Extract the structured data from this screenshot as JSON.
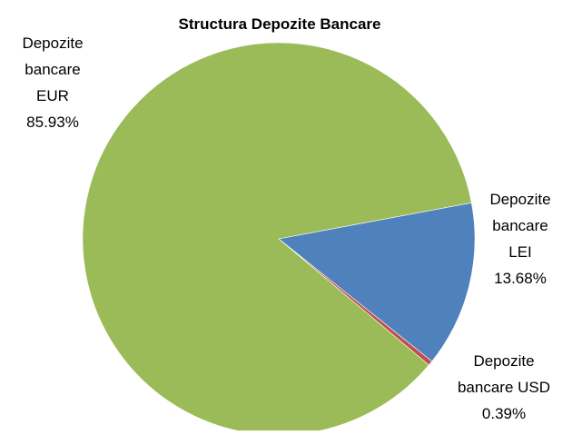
{
  "chart_data": {
    "type": "pie",
    "title": "Structura Depozite Bancare",
    "slices": [
      {
        "label_lines": [
          "Depozite",
          "bancare",
          "LEI",
          "13.68%"
        ],
        "value": 13.68,
        "color": "#4F81BD"
      },
      {
        "label_lines": [
          "Depozite",
          "bancare USD",
          "0.39%"
        ],
        "value": 0.39,
        "color": "#C0504D"
      },
      {
        "label_lines": [
          "Depozite",
          "bancare",
          "EUR",
          "85.93%"
        ],
        "value": 85.93,
        "color": "#9BBB59"
      }
    ],
    "legend": "none"
  }
}
